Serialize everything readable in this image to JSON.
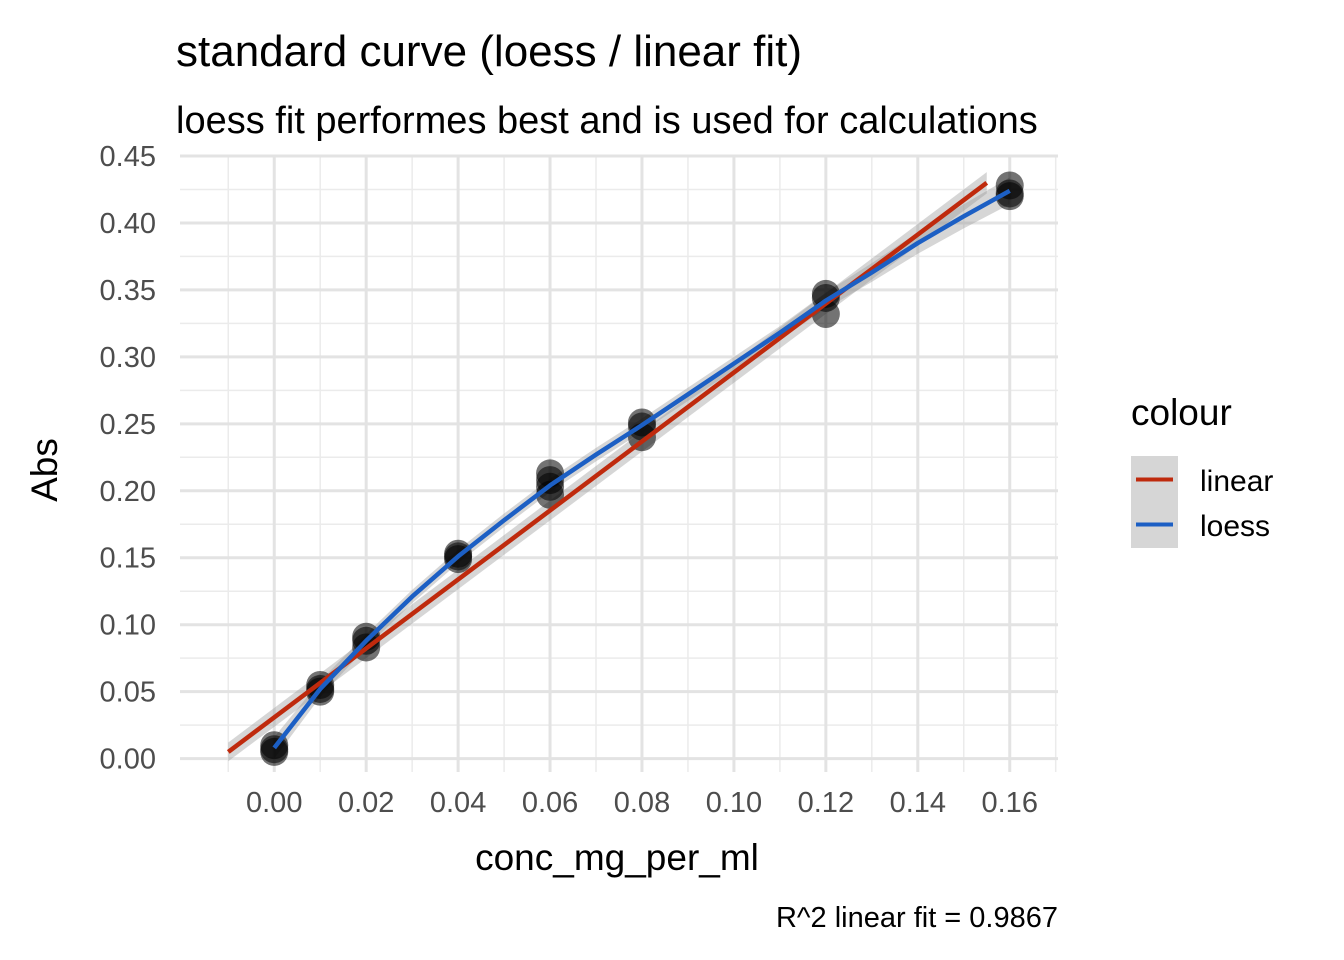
{
  "chart_data": {
    "type": "scatter",
    "title": "standard curve (loess / linear fit)",
    "subtitle": "loess fit performes best and is used for calculations",
    "xlabel": "conc_mg_per_ml",
    "ylabel": "Abs",
    "caption": "R^2 linear fit = 0.9867",
    "xlim": [
      -0.0205,
      0.1705
    ],
    "ylim": [
      -0.01,
      0.45
    ],
    "x_ticks": [
      "0.00",
      "0.02",
      "0.04",
      "0.06",
      "0.08",
      "0.10",
      "0.12",
      "0.14",
      "0.16"
    ],
    "x_tick_values": [
      0,
      0.02,
      0.04,
      0.06,
      0.08,
      0.1,
      0.12,
      0.14,
      0.16
    ],
    "y_ticks": [
      "0.00",
      "0.05",
      "0.10",
      "0.15",
      "0.20",
      "0.25",
      "0.30",
      "0.35",
      "0.40",
      "0.45"
    ],
    "y_tick_values": [
      0,
      0.05,
      0.1,
      0.15,
      0.2,
      0.25,
      0.3,
      0.35,
      0.4,
      0.45
    ],
    "grid": true,
    "legend": {
      "title": "colour",
      "position": "right",
      "entries": [
        {
          "label": "linear",
          "color": "#bf2a0d"
        },
        {
          "label": "loess",
          "color": "#1c5fc4"
        }
      ]
    },
    "points": {
      "x": [
        0,
        0,
        0,
        0.01,
        0.01,
        0.01,
        0.02,
        0.02,
        0.02,
        0.04,
        0.04,
        0.04,
        0.06,
        0.06,
        0.06,
        0.06,
        0.08,
        0.08,
        0.08,
        0.12,
        0.12,
        0.12,
        0.16,
        0.16,
        0.16
      ],
      "y": [
        0.005,
        0.007,
        0.01,
        0.05,
        0.052,
        0.055,
        0.083,
        0.088,
        0.091,
        0.149,
        0.151,
        0.153,
        0.197,
        0.203,
        0.208,
        0.213,
        0.24,
        0.248,
        0.251,
        0.332,
        0.344,
        0.347,
        0.42,
        0.422,
        0.428
      ],
      "color": "#000000",
      "alpha": 0.55
    },
    "series": [
      {
        "name": "linear",
        "color": "#bf2a0d",
        "x": [
          -0.01,
          0.155
        ],
        "y": [
          0.005,
          0.43
        ],
        "ci_upper": [
          0.012,
          0.438
        ],
        "ci_lower": [
          -0.002,
          0.422
        ]
      },
      {
        "name": "loess",
        "color": "#1c5fc4",
        "x": [
          0,
          0.01,
          0.02,
          0.03,
          0.04,
          0.05,
          0.06,
          0.07,
          0.08,
          0.09,
          0.1,
          0.11,
          0.12,
          0.13,
          0.14,
          0.15,
          0.16
        ],
        "y": [
          0.008,
          0.052,
          0.088,
          0.121,
          0.151,
          0.178,
          0.204,
          0.227,
          0.249,
          0.272,
          0.295,
          0.318,
          0.342,
          0.363,
          0.385,
          0.405,
          0.424
        ],
        "ci_upper": [
          0.016,
          0.058,
          0.093,
          0.126,
          0.156,
          0.183,
          0.209,
          0.232,
          0.254,
          0.277,
          0.3,
          0.323,
          0.348,
          0.37,
          0.393,
          0.414,
          0.434
        ],
        "ci_lower": [
          0.0,
          0.046,
          0.083,
          0.116,
          0.146,
          0.173,
          0.199,
          0.222,
          0.244,
          0.267,
          0.29,
          0.313,
          0.336,
          0.356,
          0.377,
          0.396,
          0.414
        ]
      }
    ]
  }
}
